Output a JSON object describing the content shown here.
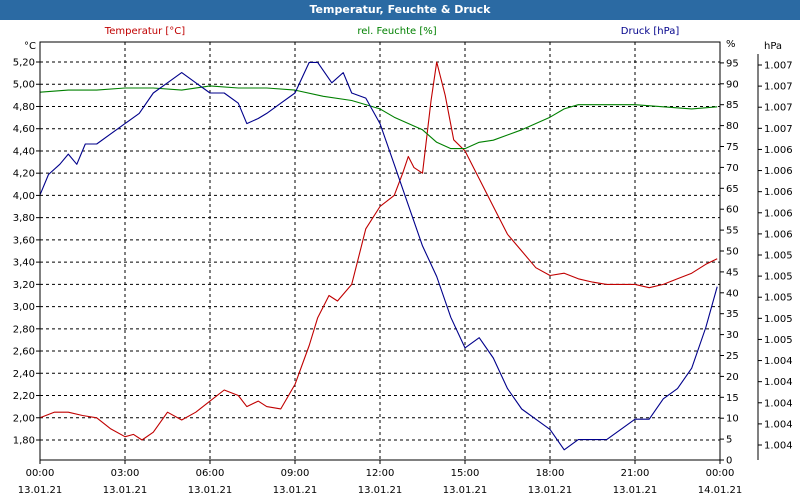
{
  "window": {
    "title": "Temperatur, Feuchte & Druck"
  },
  "colors": {
    "title_bar": "#2b6aa3",
    "temperature": "#c00000",
    "humidity": "#008000",
    "pressure": "#00008b",
    "grid": "#000000"
  },
  "chart_data": {
    "type": "line",
    "title": "Temperatur, Feuchte & Druck",
    "grid": true,
    "legend": [
      "Temperatur [°C]",
      "rel. Feuchte [%]",
      "Druck [hPa]"
    ],
    "x_ticks": [
      {
        "time": "00:00",
        "date": "13.01.21"
      },
      {
        "time": "03:00",
        "date": "13.01.21"
      },
      {
        "time": "06:00",
        "date": "13.01.21"
      },
      {
        "time": "09:00",
        "date": "13.01.21"
      },
      {
        "time": "12:00",
        "date": "13.01.21"
      },
      {
        "time": "15:00",
        "date": "13.01.21"
      },
      {
        "time": "18:00",
        "date": "13.01.21"
      },
      {
        "time": "21:00",
        "date": "13.01.21"
      },
      {
        "time": "00:00",
        "date": "14.01.21"
      }
    ],
    "x_range_hours": [
      0,
      24
    ],
    "axes": {
      "temperature": {
        "unit": "°C",
        "range": [
          1.62,
          5.38
        ],
        "ticks": [
          "1,80",
          "2,00",
          "2,20",
          "2,40",
          "2,60",
          "2,80",
          "3,00",
          "3,20",
          "3,40",
          "3,60",
          "3,80",
          "4,00",
          "4,20",
          "4,40",
          "4,60",
          "4,80",
          "5,00",
          "5,20"
        ]
      },
      "humidity": {
        "unit": "%",
        "range": [
          0,
          100
        ],
        "ticks": [
          "0",
          "5",
          "10",
          "15",
          "20",
          "25",
          "30",
          "35",
          "40",
          "45",
          "50",
          "55",
          "60",
          "65",
          "70",
          "75",
          "80",
          "85",
          "90",
          "95"
        ]
      },
      "pressure": {
        "unit": "hPa",
        "range": [
          1003.4,
          1007.5
        ],
        "ticks": [
          "1.004",
          "1.004",
          "1.004",
          "1.004",
          "1.004",
          "1.005",
          "1.005",
          "1.005",
          "1.005",
          "1.005",
          "1.006",
          "1.006",
          "1.006",
          "1.006",
          "1.006",
          "1.007",
          "1.007",
          "1.007",
          "1.007"
        ]
      }
    },
    "series": [
      {
        "name": "Temperatur [°C]",
        "axis": "temperature",
        "points": [
          [
            0,
            2.0
          ],
          [
            0.5,
            2.05
          ],
          [
            1,
            2.05
          ],
          [
            1.5,
            2.02
          ],
          [
            2,
            2.0
          ],
          [
            2.5,
            1.9
          ],
          [
            3,
            1.83
          ],
          [
            3.3,
            1.85
          ],
          [
            3.6,
            1.8
          ],
          [
            4,
            1.87
          ],
          [
            4.5,
            2.05
          ],
          [
            5,
            1.98
          ],
          [
            5.5,
            2.05
          ],
          [
            6,
            2.15
          ],
          [
            6.5,
            2.25
          ],
          [
            7,
            2.2
          ],
          [
            7.3,
            2.1
          ],
          [
            7.7,
            2.15
          ],
          [
            8,
            2.1
          ],
          [
            8.5,
            2.08
          ],
          [
            9,
            2.3
          ],
          [
            9.5,
            2.65
          ],
          [
            9.8,
            2.9
          ],
          [
            10.2,
            3.1
          ],
          [
            10.5,
            3.05
          ],
          [
            11,
            3.2
          ],
          [
            11.5,
            3.7
          ],
          [
            12,
            3.9
          ],
          [
            12.5,
            4.0
          ],
          [
            12.8,
            4.2
          ],
          [
            13,
            4.35
          ],
          [
            13.2,
            4.25
          ],
          [
            13.5,
            4.2
          ],
          [
            13.8,
            4.85
          ],
          [
            14,
            5.2
          ],
          [
            14.3,
            4.9
          ],
          [
            14.6,
            4.5
          ],
          [
            15,
            4.4
          ],
          [
            15.5,
            4.15
          ],
          [
            16,
            3.9
          ],
          [
            16.5,
            3.65
          ],
          [
            17,
            3.5
          ],
          [
            17.5,
            3.35
          ],
          [
            18,
            3.28
          ],
          [
            18.5,
            3.3
          ],
          [
            19,
            3.25
          ],
          [
            19.5,
            3.22
          ],
          [
            20,
            3.2
          ],
          [
            20.5,
            3.2
          ],
          [
            21,
            3.2
          ],
          [
            21.5,
            3.17
          ],
          [
            22,
            3.2
          ],
          [
            22.5,
            3.25
          ],
          [
            23,
            3.3
          ],
          [
            23.5,
            3.38
          ],
          [
            23.9,
            3.43
          ]
        ]
      },
      {
        "name": "rel. Feuchte [%]",
        "axis": "humidity",
        "points": [
          [
            0,
            88
          ],
          [
            1,
            88.5
          ],
          [
            2,
            88.5
          ],
          [
            3,
            89
          ],
          [
            4,
            89
          ],
          [
            5,
            88.5
          ],
          [
            6,
            89.5
          ],
          [
            7,
            89
          ],
          [
            8,
            89
          ],
          [
            9,
            88.5
          ],
          [
            10,
            87
          ],
          [
            11,
            86
          ],
          [
            12,
            84
          ],
          [
            12.5,
            82
          ],
          [
            13,
            80.5
          ],
          [
            13.5,
            79
          ],
          [
            14,
            76
          ],
          [
            14.5,
            74.5
          ],
          [
            15,
            74.5
          ],
          [
            15.5,
            76
          ],
          [
            16,
            76.5
          ],
          [
            17,
            79
          ],
          [
            18,
            82
          ],
          [
            18.5,
            84
          ],
          [
            19,
            85
          ],
          [
            20,
            85
          ],
          [
            21,
            85
          ],
          [
            22,
            84.5
          ],
          [
            23,
            84
          ],
          [
            23.9,
            84.5
          ]
        ]
      },
      {
        "name": "Druck [hPa]",
        "axis": "pressure",
        "points": [
          [
            0,
            1006.0
          ],
          [
            0.3,
            1006.2
          ],
          [
            0.7,
            1006.3
          ],
          [
            1,
            1006.4
          ],
          [
            1.3,
            1006.3
          ],
          [
            1.6,
            1006.5
          ],
          [
            2,
            1006.5
          ],
          [
            2.5,
            1006.6
          ],
          [
            3,
            1006.7
          ],
          [
            3.5,
            1006.8
          ],
          [
            4,
            1007.0
          ],
          [
            4.5,
            1007.1
          ],
          [
            5,
            1007.2
          ],
          [
            5.5,
            1007.1
          ],
          [
            6,
            1007.0
          ],
          [
            6.5,
            1007.0
          ],
          [
            7,
            1006.9
          ],
          [
            7.3,
            1006.7
          ],
          [
            7.7,
            1006.75
          ],
          [
            8,
            1006.8
          ],
          [
            8.5,
            1006.9
          ],
          [
            9,
            1007.0
          ],
          [
            9.5,
            1007.3
          ],
          [
            9.8,
            1007.3
          ],
          [
            10.3,
            1007.1
          ],
          [
            10.7,
            1007.2
          ],
          [
            11,
            1007.0
          ],
          [
            11.5,
            1006.95
          ],
          [
            12,
            1006.7
          ],
          [
            12.5,
            1006.3
          ],
          [
            13,
            1005.9
          ],
          [
            13.5,
            1005.5
          ],
          [
            14,
            1005.2
          ],
          [
            14.5,
            1004.8
          ],
          [
            15,
            1004.5
          ],
          [
            15.5,
            1004.6
          ],
          [
            16,
            1004.4
          ],
          [
            16.5,
            1004.1
          ],
          [
            17,
            1003.9
          ],
          [
            17.5,
            1003.8
          ],
          [
            18,
            1003.7
          ],
          [
            18.5,
            1003.5
          ],
          [
            19,
            1003.6
          ],
          [
            19.5,
            1003.6
          ],
          [
            20,
            1003.6
          ],
          [
            20.5,
            1003.7
          ],
          [
            21,
            1003.8
          ],
          [
            21.5,
            1003.8
          ],
          [
            22,
            1004.0
          ],
          [
            22.5,
            1004.1
          ],
          [
            23,
            1004.3
          ],
          [
            23.5,
            1004.7
          ],
          [
            23.9,
            1005.1
          ]
        ]
      }
    ]
  }
}
